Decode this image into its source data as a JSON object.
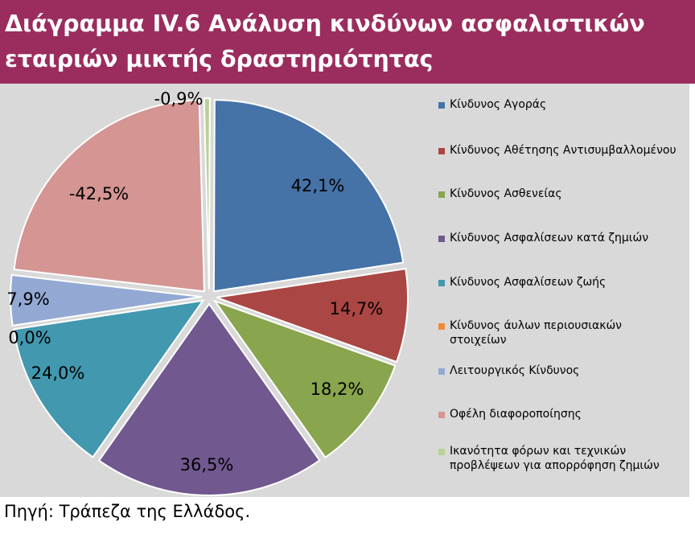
{
  "title": {
    "line1": "Διάγραμμα IV.6 Ανάλυση κινδύνων ασφαλιστικών",
    "line2": "εταιριών μικτής δραστηριότητας"
  },
  "source": "Πηγή: Τράπεζα της Ελλάδος.",
  "chart_data": {
    "type": "pie",
    "title": "",
    "legend_position": "right",
    "slices": [
      {
        "name": "Κίνδυνος Αγοράς",
        "value": 42.1,
        "label": "42,1%",
        "color": "#4572a7"
      },
      {
        "name": "Κίνδυνος Αθέτησης Αντισυμβαλλομένου",
        "value": 14.7,
        "label": "14,7%",
        "color": "#aa4643"
      },
      {
        "name": "Κίνδυνος Ασθενείας",
        "value": 18.2,
        "label": "18,2%",
        "color": "#89a54e"
      },
      {
        "name": "Κίνδυνος Ασφαλίσεων κατά ζημιών",
        "value": 36.5,
        "label": "36,5%",
        "color": "#71588f"
      },
      {
        "name": "Κίνδυνος Ασφαλίσεων ζωής",
        "value": 24.0,
        "label": "24,0%",
        "color": "#4198af"
      },
      {
        "name": "Κίνδυνος άυλων περιουσιακών στοιχείων",
        "value": 0.0,
        "label": "0,0%",
        "color": "#f18a37"
      },
      {
        "name": "Λειτουργικός Κίνδυνος",
        "value": 7.9,
        "label": "7,9%",
        "color": "#93a9d4"
      },
      {
        "name": "Οφέλη διαφοροποίησης",
        "value": -42.5,
        "label": "-42,5%",
        "color": "#d49593"
      },
      {
        "name": "Ικανότητα φόρων και τεχνικών προβλέψεων για απορρόφηση ζημιών",
        "value": -0.9,
        "label": "-0,9%",
        "color": "#b9d194"
      }
    ]
  }
}
